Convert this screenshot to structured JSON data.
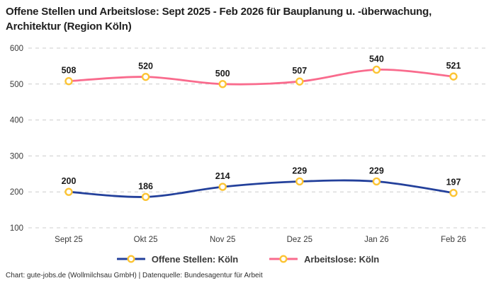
{
  "title": "Offene Stellen und Arbeitslose: Sept 2025 - Feb 2026 für Bauplanung u. -überwachung, Architektur (Region Köln)",
  "footer": "Chart: gute-jobs.de (Wollmilchsau GmbH) | Datenquelle: Bundesagentur für Arbeit",
  "colors": {
    "title_text": "#1f1f1f",
    "tick_text": "#3a3a3a",
    "gridline": "#cccccc",
    "marker_fill": "#ffffff",
    "marker_stroke": "#fcc434",
    "series_blue": "#23409b",
    "series_pink": "#f96b8d",
    "background": "#ffffff"
  },
  "chart_data": {
    "type": "line",
    "title": "Offene Stellen und Arbeitslose: Sept 2025 - Feb 2026 für Bauplanung u. -überwachung, Architektur (Region Köln)",
    "categories": [
      "Sept 25",
      "Okt 25",
      "Nov 25",
      "Dez 25",
      "Jan 26",
      "Feb 26"
    ],
    "series": [
      {
        "name": "Offene Stellen: Köln",
        "color": "#23409b",
        "values": [
          200,
          186,
          214,
          229,
          229,
          197
        ]
      },
      {
        "name": "Arbeitslose: Köln",
        "color": "#f96b8d",
        "values": [
          508,
          520,
          500,
          507,
          540,
          521
        ]
      }
    ],
    "xlabel": "",
    "ylabel": "",
    "ylim": [
      100,
      600
    ],
    "yticks": [
      100,
      200,
      300,
      400,
      500,
      600
    ],
    "grid": "horizontal-dashed",
    "smooth": true,
    "data_labels": true,
    "legend_position": "bottom",
    "marker": {
      "shape": "circle",
      "fill": "#ffffff",
      "stroke": "#fcc434"
    }
  }
}
